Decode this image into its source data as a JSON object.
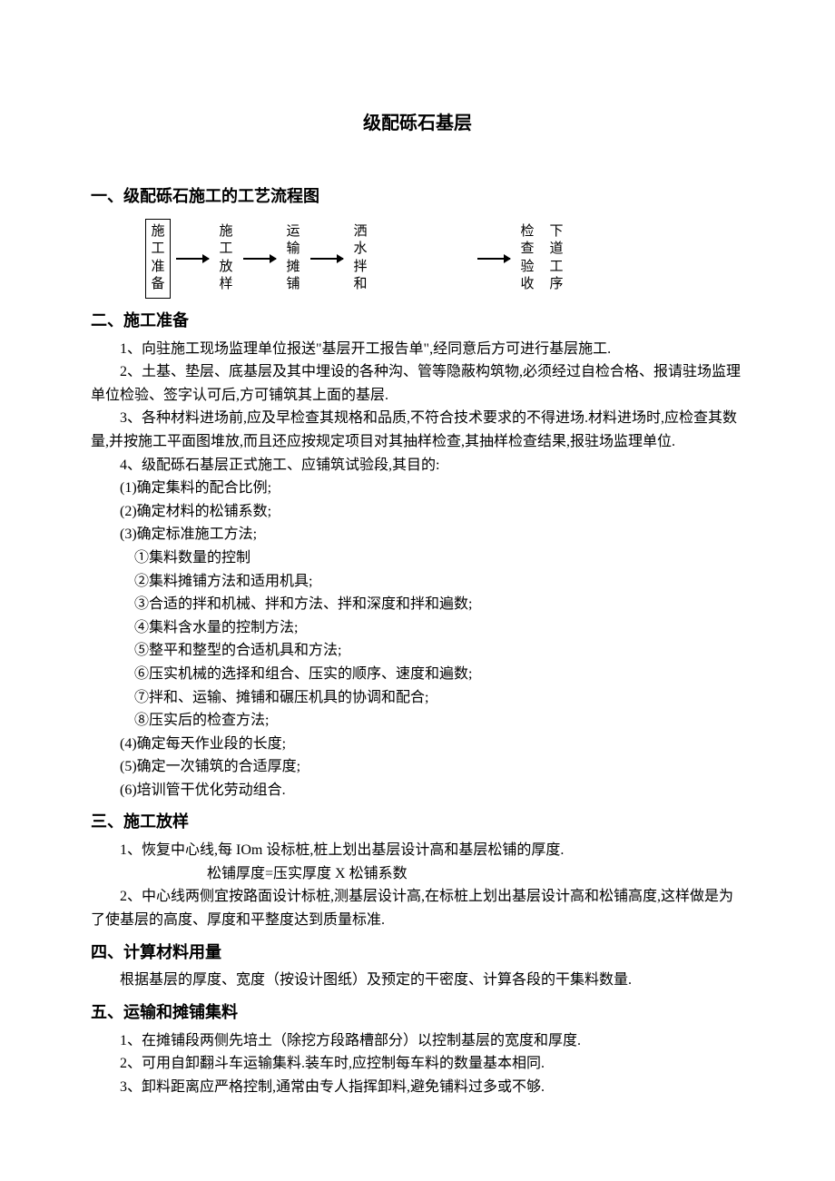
{
  "title": "级配砾石基层",
  "sections": {
    "s1": {
      "heading": "一、级配砾石施工的工艺流程图",
      "flow": {
        "nodes": [
          "施工准备",
          "施工放样",
          "运输摊铺",
          "洒水拌和",
          "检查验收",
          "下道工序"
        ]
      }
    },
    "s2": {
      "heading": "二、施工准备",
      "p1": "1、向驻施工现场监理单位报送\"基层开工报告单\",经同意后方可进行基层施工.",
      "p2": "2、土基、垫层、底基层及其中埋设的各种沟、管等隐蔽构筑物,必须经过自检合格、报请驻场监理单位检验、签字认可后,方可铺筑其上面的基层.",
      "p3": "3、各种材料进场前,应及早检查其规格和品质,不符合技术要求的不得进场.材料进场时,应检查其数量,并按施工平面图堆放,而且还应按规定项目对其抽样检查,其抽样检查结果,报驻场监理单位.",
      "p4": "4、级配砾石基层正式施工、应铺筑试验段,其目的:",
      "l1": "(1)确定集料的配合比例;",
      "l2": "(2)确定材料的松铺系数;",
      "l3": "(3)确定标准施工方法;",
      "m1": "①集料数量的控制",
      "m2": "②集料摊铺方法和适用机具;",
      "m3": "③合适的拌和机械、拌和方法、拌和深度和拌和遍数;",
      "m4": "④集料含水量的控制方法;",
      "m5": "⑤整平和整型的合适机具和方法;",
      "m6": "⑥压实机械的选择和组合、压实的顺序、速度和遍数;",
      "m7": "⑦拌和、运输、摊铺和碾压机具的协调和配合;",
      "m8": "⑧压实后的检查方法;",
      "l4": "(4)确定每天作业段的长度;",
      "l5": "(5)确定一次铺筑的合适厚度;",
      "l6": "(6)培训管干优化劳动组合."
    },
    "s3": {
      "heading": "三、施工放样",
      "p1": "1、恢复中心线,每 IOm 设标桩,桩上划出基层设计高和基层松铺的厚度.",
      "formula": "松铺厚度=压实厚度 X 松铺系数",
      "p2": "2、中心线两侧宜按路面设计标桩,测基层设计高,在标桩上划出基层设计高和松铺高度,这样做是为了使基层的高度、厚度和平整度达到质量标准."
    },
    "s4": {
      "heading": "四、计算材料用量",
      "p1": "根据基层的厚度、宽度（按设计图纸）及预定的干密度、计算各段的干集料数量."
    },
    "s5": {
      "heading": "五、运输和摊铺集料",
      "p1": "1、在摊铺段两侧先培土（除挖方段路槽部分）以控制基层的宽度和厚度.",
      "p2": "2、可用自卸翻斗车运输集料.装车时,应控制每车料的数量基本相同.",
      "p3": "3、卸料距离应严格控制,通常由专人指挥卸料,避免铺料过多或不够."
    }
  },
  "style": {
    "background_color": "#ffffff",
    "text_color": "#000000",
    "title_fontsize": 20,
    "heading_fontsize": 18,
    "body_fontsize": 16,
    "font_family": "SimSun"
  }
}
